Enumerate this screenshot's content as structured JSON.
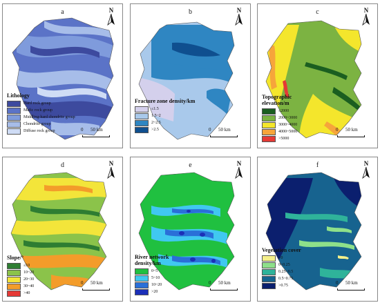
{
  "panels": [
    {
      "label": "a",
      "legend_title": "Lithology",
      "legend": [
        {
          "text": "Hard rock group",
          "color": "#3d4a9e"
        },
        {
          "text": "Mafic rock group",
          "color": "#5b73c7"
        },
        {
          "text": "Middling-hard chondrite group",
          "color": "#7f9bdc"
        },
        {
          "text": "Chondrite group",
          "color": "#a7bde9"
        },
        {
          "text": "Diffuse rock group",
          "color": "#cfdcf5"
        }
      ]
    },
    {
      "label": "b",
      "legend_title": "Fracture zone density/km",
      "legend": [
        {
          "text": "≤1.5",
          "color": "#d4d0ec"
        },
        {
          "text": "1.5~2",
          "color": "#a9c9eb"
        },
        {
          "text": "2~2.5",
          "color": "#2f86c2"
        },
        {
          "text": ">2.5",
          "color": "#0f4f8f"
        }
      ]
    },
    {
      "label": "c",
      "legend_title": "Topographic elevation/m",
      "legend": [
        {
          "text": "≤2000",
          "color": "#1b5e20"
        },
        {
          "text": "2000~3000",
          "color": "#7cb342"
        },
        {
          "text": "3000~4000",
          "color": "#f4e62c"
        },
        {
          "text": "4000~5000",
          "color": "#f6a53b"
        },
        {
          "text": ">5000",
          "color": "#e53935"
        }
      ]
    },
    {
      "label": "d",
      "legend_title": "Slope/°",
      "legend": [
        {
          "text": "≤10",
          "color": "#2e7d32"
        },
        {
          "text": "10~20",
          "color": "#8bc34a"
        },
        {
          "text": "20~30",
          "color": "#f3e53a"
        },
        {
          "text": "30~40",
          "color": "#f39c2a"
        },
        {
          "text": ">40",
          "color": "#e53935"
        }
      ]
    },
    {
      "label": "e",
      "legend_title": "River network density/km",
      "legend": [
        {
          "text": "0~5",
          "color": "#20c040"
        },
        {
          "text": "5~10",
          "color": "#40c8f0"
        },
        {
          "text": "10~20",
          "color": "#2a6fd8"
        },
        {
          "text": ">20",
          "color": "#1b2fb8"
        }
      ]
    },
    {
      "label": "f",
      "legend_title": "Vegetation cover",
      "legend": [
        {
          "text": "<0",
          "color": "#f5f08a"
        },
        {
          "text": "0~0.25",
          "color": "#8ee08a"
        },
        {
          "text": "0.25~0.5",
          "color": "#2fb39a"
        },
        {
          "text": "0.5~0.75",
          "color": "#17638f"
        },
        {
          "text": ">0.75",
          "color": "#0b1f6e"
        }
      ]
    }
  ],
  "north_label": "N",
  "scale": {
    "start": "0",
    "end": "50 km"
  }
}
